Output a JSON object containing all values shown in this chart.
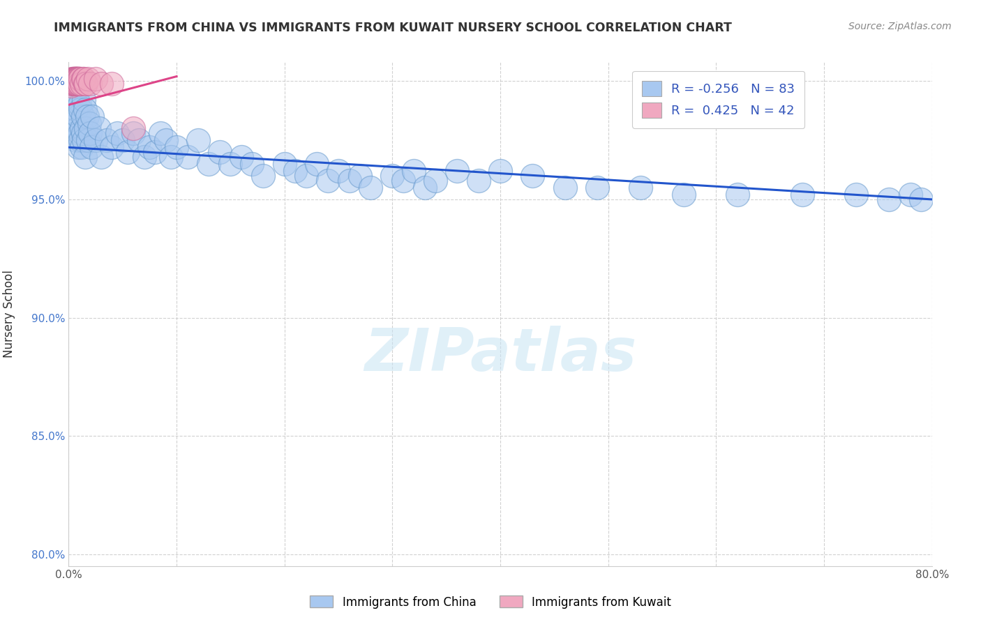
{
  "title": "IMMIGRANTS FROM CHINA VS IMMIGRANTS FROM KUWAIT NURSERY SCHOOL CORRELATION CHART",
  "source": "Source: ZipAtlas.com",
  "ylabel": "Nursery School",
  "xlim": [
    0.0,
    0.8
  ],
  "ylim": [
    0.795,
    1.008
  ],
  "x_ticks": [
    0.0,
    0.1,
    0.2,
    0.3,
    0.4,
    0.5,
    0.6,
    0.7,
    0.8
  ],
  "x_tick_labels": [
    "0.0%",
    "",
    "",
    "",
    "",
    "",
    "",
    "",
    "80.0%"
  ],
  "y_ticks": [
    0.8,
    0.85,
    0.9,
    0.95,
    1.0
  ],
  "y_tick_labels": [
    "80.0%",
    "85.0%",
    "90.0%",
    "95.0%",
    "100.0%"
  ],
  "china_color": "#a8c8f0",
  "kuwait_color": "#f0a8c0",
  "china_line_color": "#2255cc",
  "kuwait_line_color": "#dd4488",
  "watermark": "ZIPatlas",
  "background_color": "#ffffff",
  "china_line_x0": 0.0,
  "china_line_y0": 0.972,
  "china_line_x1": 0.8,
  "china_line_y1": 0.95,
  "kuwait_line_x0": 0.0,
  "kuwait_line_y0": 0.99,
  "kuwait_line_x1": 0.1,
  "kuwait_line_y1": 1.002,
  "china_x": [
    0.003,
    0.004,
    0.005,
    0.006,
    0.006,
    0.007,
    0.007,
    0.008,
    0.008,
    0.009,
    0.009,
    0.01,
    0.01,
    0.011,
    0.011,
    0.012,
    0.012,
    0.013,
    0.013,
    0.014,
    0.014,
    0.015,
    0.015,
    0.016,
    0.017,
    0.018,
    0.019,
    0.02,
    0.021,
    0.022,
    0.025,
    0.028,
    0.03,
    0.035,
    0.04,
    0.045,
    0.05,
    0.055,
    0.06,
    0.065,
    0.07,
    0.075,
    0.08,
    0.085,
    0.09,
    0.095,
    0.1,
    0.11,
    0.12,
    0.13,
    0.14,
    0.15,
    0.16,
    0.17,
    0.18,
    0.2,
    0.21,
    0.22,
    0.23,
    0.24,
    0.25,
    0.26,
    0.27,
    0.28,
    0.3,
    0.31,
    0.32,
    0.33,
    0.34,
    0.36,
    0.38,
    0.4,
    0.43,
    0.46,
    0.49,
    0.53,
    0.57,
    0.62,
    0.68,
    0.73,
    0.76,
    0.78,
    0.79
  ],
  "china_y": [
    0.985,
    0.99,
    0.982,
    0.995,
    0.978,
    0.988,
    0.975,
    0.992,
    0.98,
    0.985,
    0.972,
    0.99,
    0.978,
    0.988,
    0.975,
    0.98,
    0.972,
    0.985,
    0.978,
    0.992,
    0.975,
    0.988,
    0.968,
    0.98,
    0.985,
    0.975,
    0.982,
    0.978,
    0.972,
    0.985,
    0.975,
    0.98,
    0.968,
    0.975,
    0.972,
    0.978,
    0.975,
    0.97,
    0.978,
    0.975,
    0.968,
    0.972,
    0.97,
    0.978,
    0.975,
    0.968,
    0.972,
    0.968,
    0.975,
    0.965,
    0.97,
    0.965,
    0.968,
    0.965,
    0.96,
    0.965,
    0.962,
    0.96,
    0.965,
    0.958,
    0.962,
    0.958,
    0.96,
    0.955,
    0.96,
    0.958,
    0.962,
    0.955,
    0.958,
    0.962,
    0.958,
    0.962,
    0.96,
    0.955,
    0.955,
    0.955,
    0.952,
    0.952,
    0.952,
    0.952,
    0.95,
    0.952,
    0.95
  ],
  "kuwait_x": [
    0.002,
    0.003,
    0.003,
    0.004,
    0.004,
    0.004,
    0.005,
    0.005,
    0.005,
    0.006,
    0.006,
    0.006,
    0.006,
    0.006,
    0.007,
    0.007,
    0.007,
    0.007,
    0.007,
    0.008,
    0.008,
    0.008,
    0.008,
    0.009,
    0.009,
    0.009,
    0.01,
    0.01,
    0.01,
    0.01,
    0.011,
    0.012,
    0.013,
    0.014,
    0.015,
    0.016,
    0.018,
    0.02,
    0.025,
    0.03,
    0.04,
    0.06
  ],
  "kuwait_y": [
    0.998,
    1.001,
    0.999,
    1.001,
    0.999,
    1.001,
    1.001,
    0.999,
    1.001,
    1.001,
    1.001,
    0.999,
    1.001,
    0.999,
    1.001,
    0.999,
    1.001,
    1.001,
    0.999,
    1.001,
    0.999,
    1.001,
    1.001,
    1.001,
    0.999,
    1.001,
    1.001,
    0.999,
    1.001,
    0.999,
    1.001,
    0.999,
    1.001,
    1.001,
    0.999,
    0.999,
    1.001,
    0.999,
    1.001,
    0.999,
    0.999,
    0.98
  ]
}
